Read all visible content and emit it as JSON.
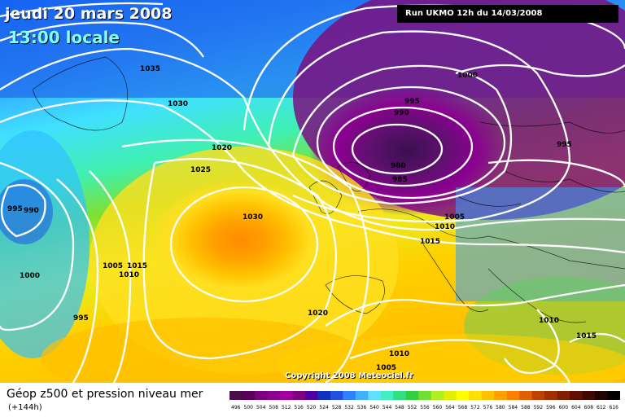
{
  "header": {
    "date": "jeudi 20 mars 2008",
    "local_time": "13:00 locale",
    "run_info": "Run UKMO 12h du 14/03/2008"
  },
  "copyright": "Copyright 2008 Meteociel.fr",
  "footer": {
    "title": "Géop z500 et pression niveau mer",
    "subtitle": "(+144h)"
  },
  "legend": {
    "values": [
      "496",
      "500",
      "504",
      "508",
      "512",
      "516",
      "520",
      "524",
      "528",
      "532",
      "536",
      "540",
      "544",
      "548",
      "552",
      "556",
      "560",
      "564",
      "568",
      "572",
      "576",
      "580",
      "584",
      "588",
      "592",
      "596",
      "600",
      "604",
      "608",
      "612",
      "616"
    ],
    "colors": [
      "#4a0f4a",
      "#5a005a",
      "#7a0080",
      "#8a0090",
      "#a000a0",
      "#800080",
      "#5000a0",
      "#1030c0",
      "#2050e0",
      "#3080ff",
      "#40b0ff",
      "#60e0ff",
      "#40f0c0",
      "#30e080",
      "#30d040",
      "#70e030",
      "#b0f020",
      "#e0f000",
      "#ffff00",
      "#ffe000",
      "#ffc000",
      "#ffa000",
      "#ff8000",
      "#e06000",
      "#c04000",
      "#a03000",
      "#802000",
      "#601000",
      "#400800",
      "#200400",
      "#000000"
    ]
  },
  "isobar_labels": [
    {
      "text": "1035"
    },
    {
      "text": "1030"
    },
    {
      "text": "1020"
    },
    {
      "text": "1025"
    },
    {
      "text": "1030"
    },
    {
      "text": "995"
    },
    {
      "text": "990"
    },
    {
      "text": "1000"
    },
    {
      "text": "1005"
    },
    {
      "text": "1015"
    },
    {
      "text": "1010"
    },
    {
      "text": "995"
    },
    {
      "text": "1000"
    },
    {
      "text": "995"
    },
    {
      "text": "990"
    },
    {
      "text": "980"
    },
    {
      "text": "985"
    },
    {
      "text": "1005"
    },
    {
      "text": "1010"
    },
    {
      "text": "1015"
    },
    {
      "text": "995"
    },
    {
      "text": "1020"
    },
    {
      "text": "1010"
    },
    {
      "text": "1015"
    },
    {
      "text": "1005"
    },
    {
      "text": "1010"
    }
  ]
}
